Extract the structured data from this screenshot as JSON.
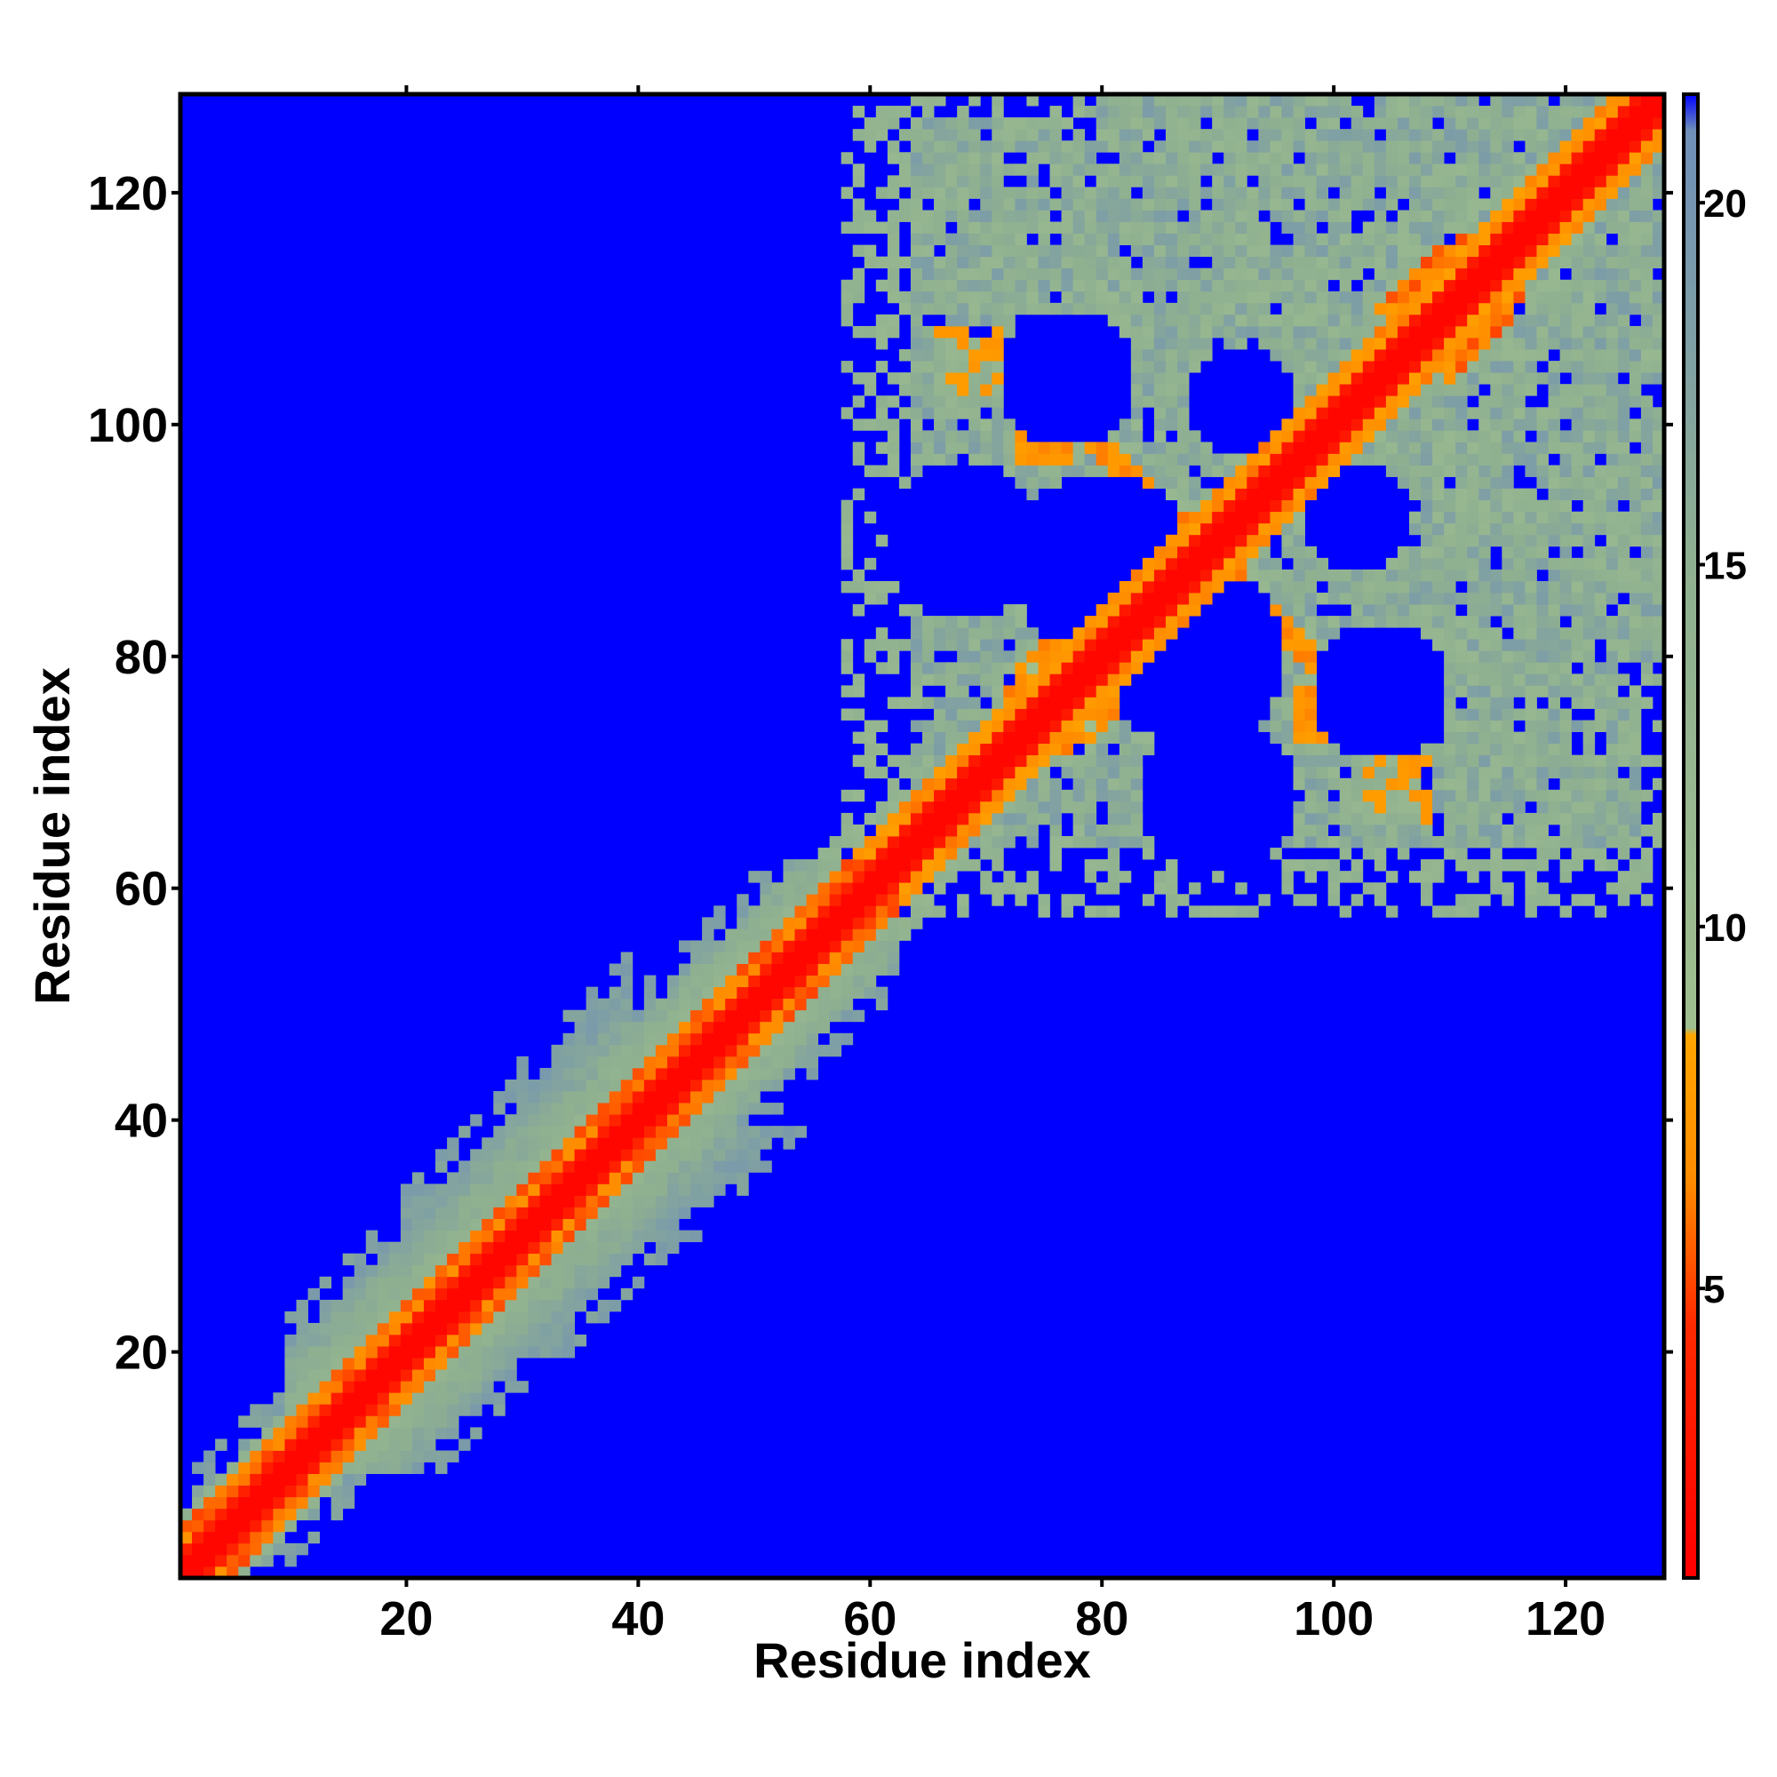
{
  "chart_data": {
    "type": "heatmap",
    "title": "",
    "xlabel": "Residue index",
    "ylabel": "Residue index",
    "x_range": [
      1,
      128
    ],
    "y_range": [
      1,
      128
    ],
    "n_residues": 128,
    "x_ticks": [
      20,
      40,
      60,
      80,
      100,
      120
    ],
    "y_ticks": [
      20,
      40,
      60,
      80,
      100,
      120
    ],
    "colorbar": {
      "range": [
        1,
        21.5
      ],
      "ticks": [
        5,
        10,
        15,
        20
      ],
      "stops": [
        {
          "value": 1,
          "color": "#ff0000"
        },
        {
          "value": 4.5,
          "color": "#ff2a00"
        },
        {
          "value": 6.5,
          "color": "#ff8c00"
        },
        {
          "value": 8.5,
          "color": "#ffa500"
        },
        {
          "value": 8.6,
          "color": "#9fbf8f"
        },
        {
          "value": 15,
          "color": "#8fb090"
        },
        {
          "value": 21,
          "color": "#6f8fb8"
        },
        {
          "value": 21.5,
          "color": "#0000ff"
        }
      ]
    },
    "background_color": "#0000ff",
    "cutoff": 21,
    "regions": {
      "diagonal_band": {
        "from": 1,
        "to": 128,
        "description_values": "near-diagonal distances 1-8"
      },
      "n_terminal_domain": {
        "range": [
          1,
          62
        ]
      },
      "c_terminal_domain": {
        "range": [
          60,
          128
        ]
      },
      "c_domain_contacts": [
        {
          "center": [
            80,
            98
          ],
          "note": "antiparallel contact streak"
        },
        {
          "center": [
            98,
            80
          ]
        },
        {
          "center": [
            103,
            95
          ]
        },
        {
          "center": [
            95,
            103
          ]
        },
        {
          "center": [
            106,
            69
          ]
        },
        {
          "center": [
            69,
            106
          ]
        },
        {
          "center": [
            70,
            105
          ]
        },
        {
          "center": [
            105,
            70
          ]
        },
        {
          "center": [
            74,
            76
          ]
        },
        {
          "center": [
            112,
            110
          ]
        }
      ]
    }
  }
}
